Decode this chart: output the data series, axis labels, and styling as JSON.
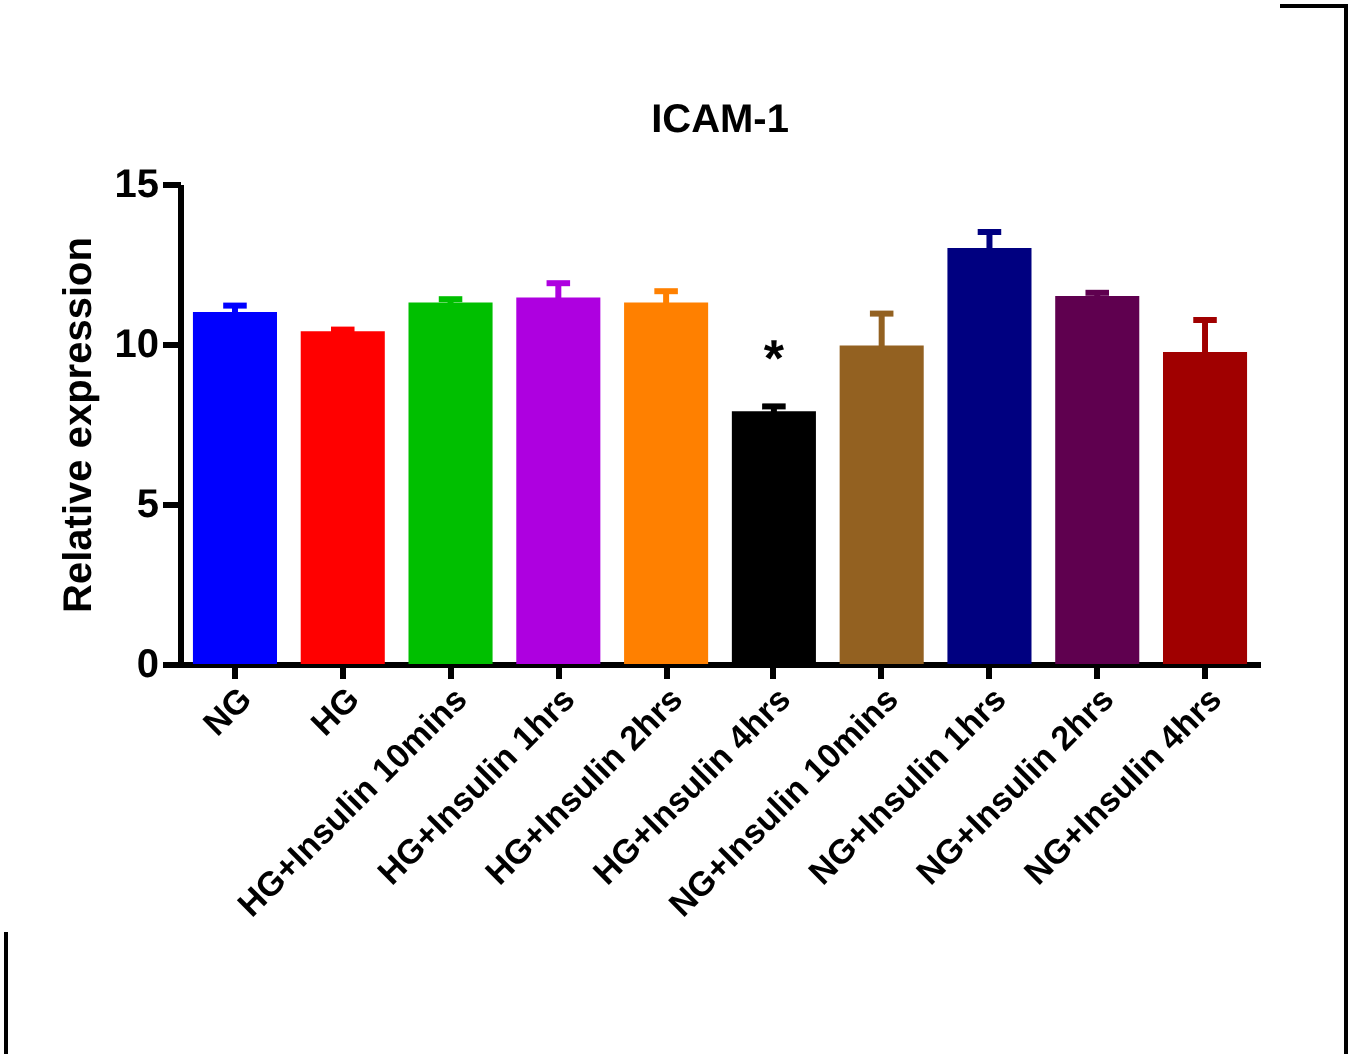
{
  "chart_data": {
    "type": "bar",
    "title": "ICAM-1",
    "ylabel": "Relative expression",
    "categories": [
      "NG",
      "HG",
      "HG+Insulin 10mins",
      "HG+Insulin 1hrs",
      "HG+Insulin 2hrs",
      "HG+Insulin 4hrs",
      "NG+Insulin 10mins",
      "NG+Insulin 1hrs",
      "NG+Insulin 2hrs",
      "NG+Insulin 4hrs"
    ],
    "values": [
      11.0,
      10.4,
      11.3,
      11.45,
      11.3,
      7.9,
      9.95,
      13.0,
      11.5,
      9.75
    ],
    "errors": [
      0.2,
      0.05,
      0.1,
      0.45,
      0.35,
      0.15,
      1.0,
      0.5,
      0.1,
      1.0
    ],
    "colors": [
      "#0000ff",
      "#ff0000",
      "#00bf00",
      "#ae00e0",
      "#ff8000",
      "#000000",
      "#936121",
      "#000080",
      "#5f004f",
      "#a00000"
    ],
    "ylim": [
      0,
      15
    ],
    "yticks": [
      0,
      5,
      10,
      15
    ],
    "grid": false,
    "annotations": [
      "*"
    ]
  }
}
